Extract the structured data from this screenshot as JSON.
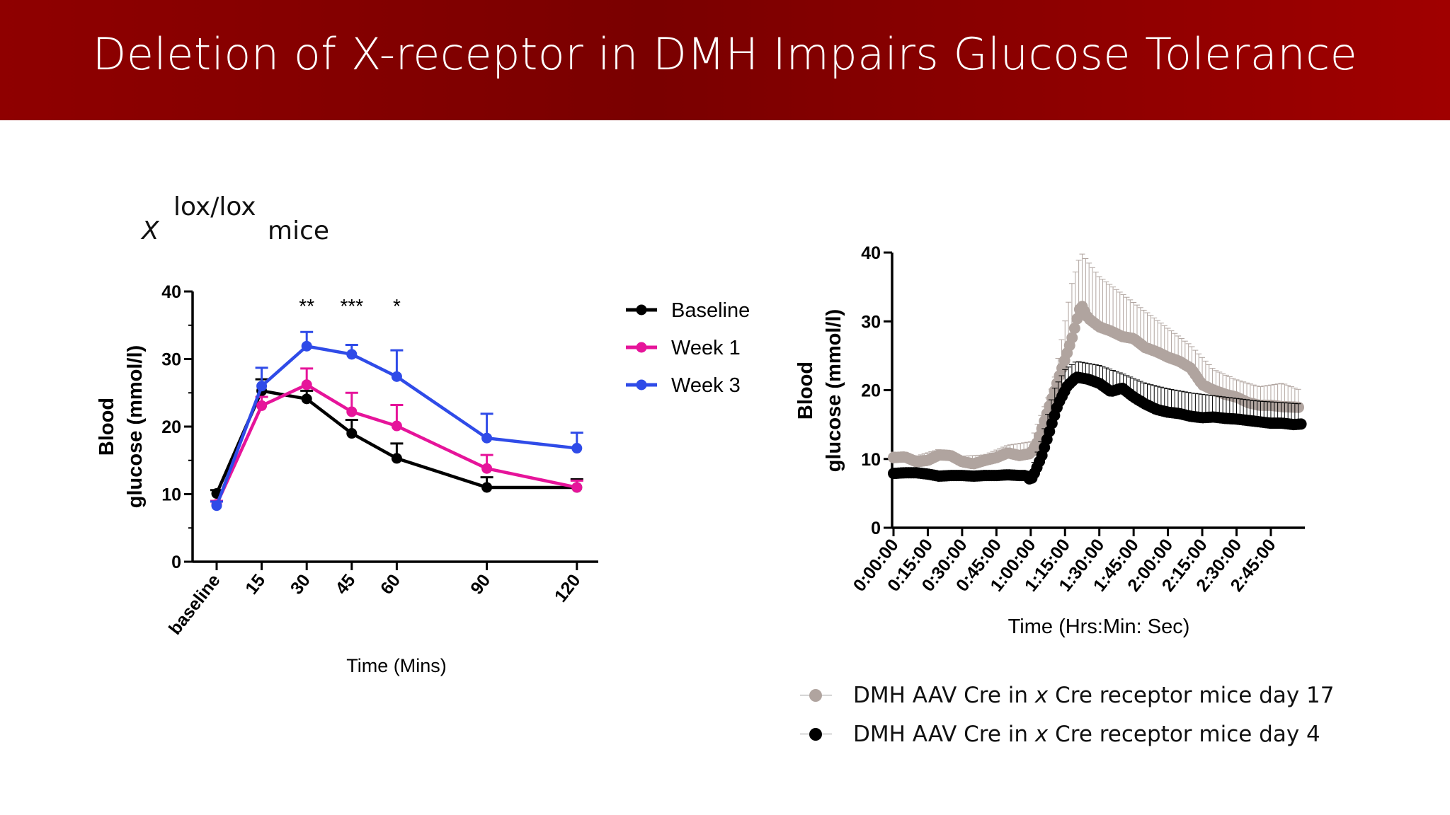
{
  "slide": {
    "title": "Deletion of X-receptor in DMH Impairs Glucose Tolerance",
    "subtitle_symbol": "X",
    "subtitle_superscript": "lox/lox",
    "subtitle_suffix": "mice"
  },
  "colors": {
    "header_dark": "#7a0000",
    "header_light": "#a00000",
    "baseline": "#000000",
    "week1": "#e6149a",
    "week3": "#2f4be8",
    "day17": "#b0a49f",
    "day4": "#000000"
  },
  "chart_data": [
    {
      "type": "line",
      "xlabel": "Time (Mins)",
      "ylabel_line1": "Blood",
      "ylabel_line2": "glucose (mmol/l)",
      "categories": [
        "baseline",
        "15",
        "30",
        "45",
        "60",
        "90",
        "120"
      ],
      "x_positions": [
        0,
        15,
        30,
        45,
        60,
        90,
        120
      ],
      "ylim": [
        0,
        40
      ],
      "yticks": [
        0,
        10,
        20,
        30,
        40
      ],
      "legend_position": "right",
      "series": [
        {
          "name": "Baseline",
          "color": "#000000",
          "values": [
            10.1,
            25.3,
            24.1,
            19.0,
            15.3,
            11.0,
            11.0
          ],
          "errors": [
            0.5,
            1.7,
            1.2,
            2.0,
            2.2,
            1.5,
            1.2
          ]
        },
        {
          "name": "Week 1",
          "color": "#e6149a",
          "values": [
            8.5,
            23.1,
            26.2,
            22.2,
            20.1,
            13.8,
            11.0
          ],
          "errors": [
            0.5,
            1.3,
            2.4,
            2.8,
            3.1,
            2.0,
            1.0
          ]
        },
        {
          "name": "Week 3",
          "color": "#2f4be8",
          "values": [
            8.3,
            26.0,
            31.9,
            30.7,
            27.4,
            18.3,
            16.8
          ],
          "errors": [
            0.6,
            2.7,
            2.1,
            1.4,
            3.9,
            3.6,
            2.3
          ]
        }
      ],
      "annotations": [
        {
          "x": 30,
          "text": "**"
        },
        {
          "x": 45,
          "text": "***"
        },
        {
          "x": 60,
          "text": "*"
        }
      ]
    },
    {
      "type": "scatter",
      "xlabel": "Time (Hrs:Min: Sec)",
      "ylabel_line1": "Blood",
      "ylabel_line2": "glucose (mmol/l)",
      "ylim": [
        0,
        40
      ],
      "yticks": [
        0,
        10,
        20,
        30,
        40
      ],
      "xlim_minutes": [
        0,
        180
      ],
      "xticks_minutes": [
        0,
        15,
        30,
        45,
        60,
        75,
        90,
        105,
        120,
        135,
        150,
        165
      ],
      "xtick_labels": [
        "0:00:00",
        "0:15:00",
        "0:30:00",
        "0:45:00",
        "1:00:00",
        "1:15:00",
        "1:30:00",
        "1:45:00",
        "2:00:00",
        "2:15:00",
        "2:30:00",
        "2:45:00"
      ],
      "series": [
        {
          "name": "DMH AAV Cre in x Cre receptor mice day 17",
          "color": "#b0a49f",
          "points": [
            [
              0,
              10.2
            ],
            [
              5,
              10.3
            ],
            [
              10,
              9.6
            ],
            [
              15,
              9.8
            ],
            [
              20,
              10.6
            ],
            [
              25,
              10.5
            ],
            [
              30,
              9.6
            ],
            [
              35,
              9.3
            ],
            [
              40,
              9.8
            ],
            [
              45,
              10.2
            ],
            [
              50,
              10.9
            ],
            [
              55,
              10.5
            ],
            [
              60,
              10.8
            ],
            [
              63,
              12.5
            ],
            [
              66,
              15.5
            ],
            [
              70,
              19.5
            ],
            [
              74,
              23.5
            ],
            [
              78,
              27.5
            ],
            [
              82,
              32.5
            ],
            [
              85,
              30.5
            ],
            [
              90,
              29.2
            ],
            [
              95,
              28.6
            ],
            [
              100,
              27.8
            ],
            [
              105,
              27.5
            ],
            [
              110,
              26.2
            ],
            [
              115,
              25.6
            ],
            [
              120,
              24.8
            ],
            [
              125,
              24.2
            ],
            [
              130,
              23.2
            ],
            [
              135,
              20.8
            ],
            [
              140,
              20.0
            ],
            [
              145,
              19.4
            ],
            [
              150,
              19.0
            ],
            [
              155,
              18.2
            ],
            [
              160,
              17.8
            ],
            [
              165,
              17.8
            ],
            [
              170,
              17.6
            ],
            [
              178,
              17.5
            ]
          ],
          "error_upper": [
            [
              0,
              11.0
            ],
            [
              10,
              10.4
            ],
            [
              20,
              11.4
            ],
            [
              30,
              10.4
            ],
            [
              40,
              10.6
            ],
            [
              50,
              12.0
            ],
            [
              60,
              12.5
            ],
            [
              70,
              21.0
            ],
            [
              78,
              35.5
            ],
            [
              82,
              40.0
            ],
            [
              90,
              36.5
            ],
            [
              100,
              34.0
            ],
            [
              110,
              31.5
            ],
            [
              120,
              29.0
            ],
            [
              130,
              26.5
            ],
            [
              140,
              23.0
            ],
            [
              150,
              21.5
            ],
            [
              160,
              20.5
            ],
            [
              170,
              21.0
            ],
            [
              178,
              20.0
            ]
          ]
        },
        {
          "name": "DMH AAV Cre in x Cre receptor mice day 4",
          "color": "#000000",
          "points": [
            [
              0,
              7.9
            ],
            [
              5,
              8.0
            ],
            [
              10,
              8.0
            ],
            [
              15,
              7.8
            ],
            [
              20,
              7.5
            ],
            [
              25,
              7.6
            ],
            [
              30,
              7.6
            ],
            [
              35,
              7.5
            ],
            [
              40,
              7.6
            ],
            [
              45,
              7.6
            ],
            [
              50,
              7.7
            ],
            [
              55,
              7.6
            ],
            [
              58,
              7.6
            ],
            [
              60,
              6.9
            ],
            [
              62,
              8.2
            ],
            [
              65,
              10.6
            ],
            [
              68,
              13.8
            ],
            [
              72,
              18.0
            ],
            [
              76,
              20.6
            ],
            [
              80,
              21.9
            ],
            [
              85,
              21.6
            ],
            [
              90,
              21.0
            ],
            [
              95,
              19.8
            ],
            [
              100,
              20.3
            ],
            [
              105,
              19.0
            ],
            [
              110,
              18.0
            ],
            [
              115,
              17.2
            ],
            [
              120,
              16.8
            ],
            [
              125,
              16.6
            ],
            [
              130,
              16.2
            ],
            [
              135,
              16.0
            ],
            [
              140,
              16.1
            ],
            [
              145,
              15.9
            ],
            [
              150,
              15.8
            ],
            [
              155,
              15.6
            ],
            [
              160,
              15.4
            ],
            [
              165,
              15.2
            ],
            [
              170,
              15.2
            ],
            [
              175,
              15.0
            ],
            [
              179,
              15.1
            ]
          ],
          "error_upper": [
            [
              60,
              8.0
            ],
            [
              65,
              13.0
            ],
            [
              70,
              20.0
            ],
            [
              75,
              23.0
            ],
            [
              80,
              24.2
            ],
            [
              90,
              23.6
            ],
            [
              100,
              22.4
            ],
            [
              110,
              21.0
            ],
            [
              120,
              20.2
            ],
            [
              130,
              19.6
            ],
            [
              140,
              19.2
            ],
            [
              150,
              18.8
            ],
            [
              160,
              18.4
            ],
            [
              170,
              18.2
            ],
            [
              178,
              18.0
            ]
          ]
        }
      ]
    }
  ]
}
